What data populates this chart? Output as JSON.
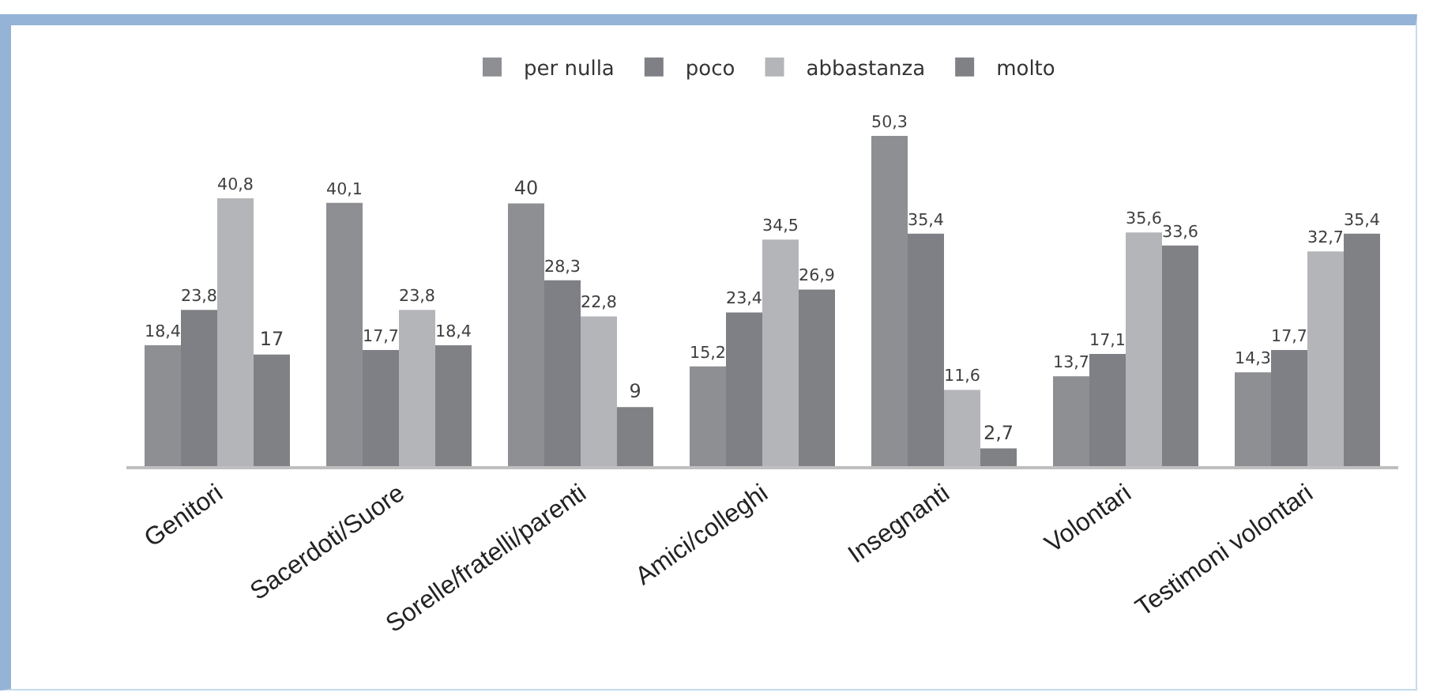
{
  "chart_data": {
    "type": "bar",
    "categories": [
      "Genitori",
      "Sacerdoti/Suore",
      "Sorelle/fratelli/parenti",
      "Amici/colleghi",
      "Insegnanti",
      "Volontari",
      "Testimoni volontari"
    ],
    "series": [
      {
        "name": "per nulla",
        "color": "#8e8f93",
        "values": [
          18.4,
          40.1,
          40,
          15.2,
          50.3,
          13.7,
          14.3
        ],
        "value_labels": [
          "18,4",
          "40,1",
          "40",
          "15,2",
          "50,3",
          "13,7",
          "14,3"
        ]
      },
      {
        "name": "poco",
        "color": "#7f8085",
        "values": [
          23.8,
          17.7,
          28.3,
          23.4,
          35.4,
          17.1,
          17.7
        ],
        "value_labels": [
          "23,8",
          "17,7",
          "28,3",
          "23,4",
          "35,4",
          "17,1",
          "17,7"
        ]
      },
      {
        "name": "abbastanza",
        "color": "#b4b5b9",
        "values": [
          40.8,
          23.8,
          22.8,
          34.5,
          11.6,
          35.6,
          32.7
        ],
        "value_labels": [
          "40,8",
          "23,8",
          "22,8",
          "34,5",
          "11,6",
          "35,6",
          "32,7"
        ]
      },
      {
        "name": "molto",
        "color": "#808185",
        "values": [
          17,
          18.4,
          9,
          26.9,
          2.7,
          33.6,
          35.4
        ],
        "value_labels": [
          "17",
          "18,4",
          "9",
          "26,9",
          "2,7",
          "33,6",
          "35,4"
        ]
      }
    ],
    "legend": "top",
    "grid": false,
    "tick_labels": "x"
  }
}
